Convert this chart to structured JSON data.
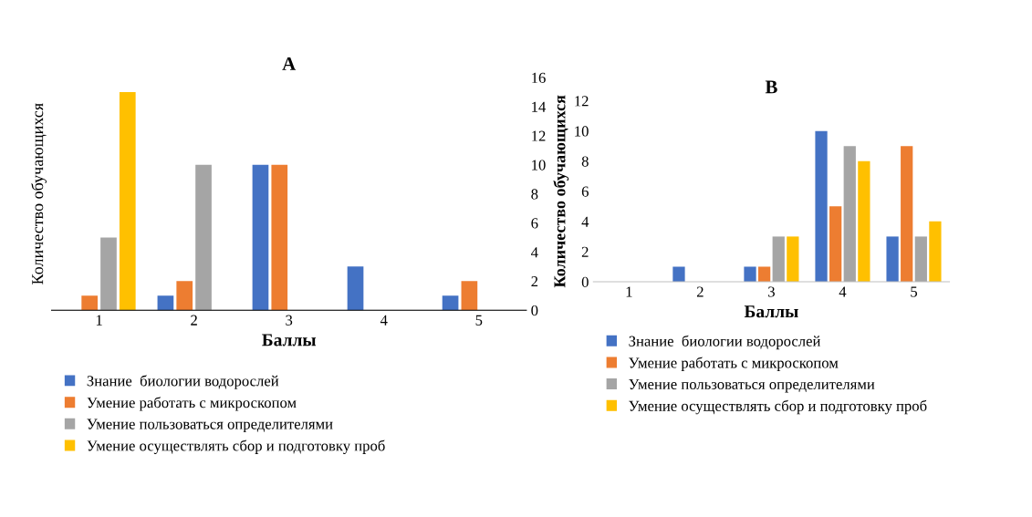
{
  "chart_data": [
    {
      "type": "bar",
      "title": "A",
      "xlabel": "Баллы",
      "ylabel": "Количество обучающихся",
      "categories": [
        "1",
        "2",
        "3",
        "4",
        "5"
      ],
      "y2lim": [
        0,
        16
      ],
      "y2ticks": [
        0,
        2,
        4,
        6,
        8,
        10,
        12,
        14,
        16
      ],
      "legend": "bottom",
      "series": [
        {
          "name": "Знание  биологии водорослей",
          "color": "#4472c4",
          "axis": "y2",
          "values": [
            0,
            1,
            10,
            3,
            1
          ]
        },
        {
          "name": "Умение работать с микроскопом",
          "color": "#ed7d31",
          "axis": "y2",
          "values": [
            1,
            2,
            10,
            0,
            2
          ]
        },
        {
          "name": "Умение пользоваться определителями",
          "color": "#a5a5a5",
          "axis": "y2",
          "values": [
            5,
            10,
            0,
            0,
            0
          ]
        },
        {
          "name": "Умение осуществлять сбор и подготовку проб",
          "color": "#ffc000",
          "axis": "y2",
          "values": [
            15,
            0,
            0,
            0,
            0
          ]
        }
      ]
    },
    {
      "type": "bar",
      "title": "B",
      "xlabel": "Баллы",
      "ylabel": "Количество обучающихся",
      "categories": [
        "1",
        "2",
        "3",
        "4",
        "5"
      ],
      "ylim": [
        0,
        12
      ],
      "yticks": [
        0,
        2,
        4,
        6,
        8,
        10,
        12
      ],
      "legend": "bottom",
      "series": [
        {
          "name": "Знание  биологии водорослей",
          "color": "#4472c4",
          "values": [
            0,
            1,
            1,
            10,
            3
          ]
        },
        {
          "name": "Умение работать с микроскопом",
          "color": "#ed7d31",
          "values": [
            0,
            0,
            1,
            5,
            9
          ]
        },
        {
          "name": "Умение пользоваться определителями",
          "color": "#a5a5a5",
          "values": [
            0,
            0,
            3,
            9,
            3
          ]
        },
        {
          "name": "Умение осуществлять сбор и подготовку проб",
          "color": "#ffc000",
          "values": [
            0,
            0,
            3,
            8,
            4
          ]
        }
      ]
    }
  ]
}
